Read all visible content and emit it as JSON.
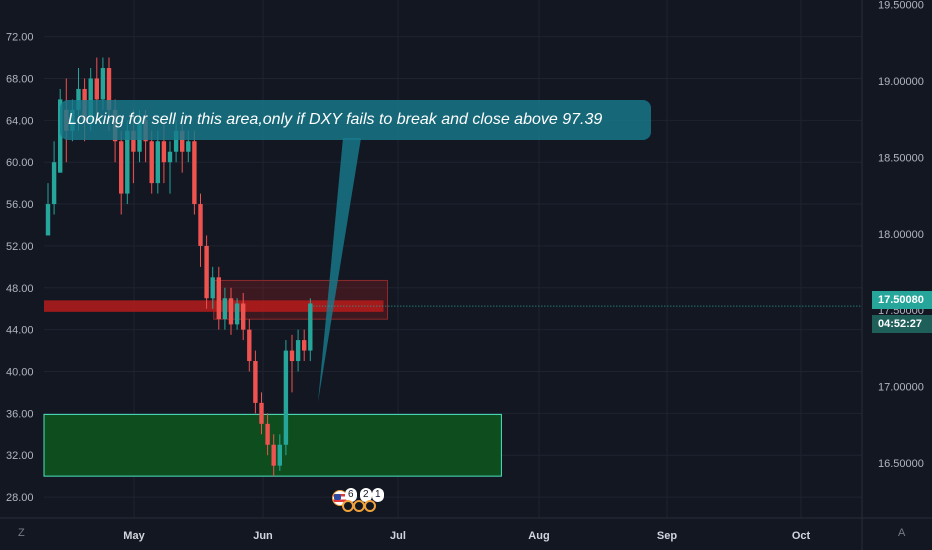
{
  "colors": {
    "background": "#131722",
    "up": "#26a69a",
    "down": "#ef5350",
    "grid": "#1f2330",
    "resistance": "#b71c1c",
    "support": "#0e4d1e",
    "support_border": "#4fe3c1",
    "callout": "#177a8c"
  },
  "chart_data": {
    "type": "candlestick",
    "left_axis": {
      "ticks": [
        "72.00",
        "68.00",
        "64.00",
        "60.00",
        "56.00",
        "52.00",
        "48.00",
        "44.00",
        "40.00",
        "36.00",
        "32.00",
        "28.00"
      ],
      "range": [
        26.0,
        75.5
      ]
    },
    "right_axis": {
      "ticks": [
        "19.50000",
        "19.00000",
        "18.50000",
        "18.00000",
        "17.50000",
        "17.00000",
        "16.50000"
      ],
      "range": [
        16.14,
        19.53
      ]
    },
    "x_labels": [
      "May",
      "Jun",
      "Jul",
      "Aug",
      "Sep",
      "Oct"
    ],
    "candles": [
      [
        53.0,
        56.0,
        53.0,
        58.0
      ],
      [
        56.0,
        60.0,
        55.0,
        62.0
      ],
      [
        59.0,
        66.0,
        59.0,
        67.0
      ],
      [
        65.0,
        63.0,
        60.0,
        68.0
      ],
      [
        63.0,
        65.0,
        62.0,
        66.0
      ],
      [
        65.0,
        67.0,
        63.0,
        69.0
      ],
      [
        67.0,
        64.0,
        62.0,
        68.0
      ],
      [
        64.0,
        68.0,
        63.0,
        69.0
      ],
      [
        68.0,
        66.0,
        64.0,
        70.0
      ],
      [
        66.0,
        69.0,
        65.0,
        70.0
      ],
      [
        69.0,
        65.0,
        63.0,
        70.0
      ],
      [
        65.0,
        62.0,
        60.0,
        66.0
      ],
      [
        62.0,
        57.0,
        55.0,
        63.0
      ],
      [
        57.0,
        63.0,
        56.0,
        64.0
      ],
      [
        63.0,
        61.0,
        58.0,
        65.0
      ],
      [
        61.0,
        64.0,
        60.0,
        65.0
      ],
      [
        64.0,
        62.0,
        60.0,
        65.0
      ],
      [
        62.0,
        58.0,
        57.0,
        63.0
      ],
      [
        58.0,
        62.0,
        57.0,
        63.0
      ],
      [
        62.0,
        60.0,
        58.0,
        64.0
      ],
      [
        60.0,
        61.0,
        57.0,
        62.0
      ],
      [
        61.0,
        63.0,
        60.0,
        64.0
      ],
      [
        63.0,
        61.0,
        59.0,
        64.0
      ],
      [
        61.0,
        62.0,
        60.0,
        63.0
      ],
      [
        62.0,
        56.0,
        55.0,
        63.0
      ],
      [
        56.0,
        52.0,
        50.0,
        57.0
      ],
      [
        52.0,
        47.0,
        46.0,
        53.0
      ],
      [
        47.0,
        49.0,
        46.0,
        50.0
      ],
      [
        49.0,
        45.0,
        44.0,
        50.0
      ],
      [
        45.0,
        47.0,
        44.0,
        48.0
      ],
      [
        47.0,
        44.5,
        43.5,
        48.0
      ],
      [
        44.5,
        46.5,
        44.0,
        47.0
      ],
      [
        46.5,
        44.0,
        43.0,
        47.5
      ],
      [
        44.0,
        41.0,
        40.0,
        45.0
      ],
      [
        41.0,
        37.0,
        36.0,
        42.0
      ],
      [
        37.0,
        35.0,
        34.0,
        38.0
      ],
      [
        35.0,
        33.0,
        32.0,
        36.0
      ],
      [
        33.0,
        31.0,
        30.0,
        34.0
      ],
      [
        31.0,
        33.0,
        30.5,
        34.0
      ],
      [
        33.0,
        42.0,
        32.0,
        43.0
      ],
      [
        42.0,
        41.0,
        38.0,
        43.5
      ],
      [
        41.0,
        43.0,
        40.0,
        44.0
      ],
      [
        43.0,
        42.0,
        41.0,
        44.0
      ],
      [
        42.0,
        46.5,
        41.0,
        47.0
      ]
    ],
    "resistance_zone": {
      "x_from": 0,
      "x_to": 55,
      "y_top": 46.8,
      "y_bottom": 45.7
    },
    "highlight_box": {
      "x_from": 27,
      "x_to": 55,
      "y_top": 48.7,
      "y_bottom": 45.0
    },
    "support_zone": {
      "x_from": 0,
      "x_to": 74,
      "y_top": 35.9,
      "y_bottom": 30.0
    },
    "current_price": 46.25,
    "annotation": "Looking for sell in this area,only if DXY fails to break and close above 97.39"
  },
  "price_tag": {
    "value": "17.50080",
    "countdown": "04:52:27"
  },
  "events": {
    "first": "6",
    "second": "2",
    "third": "1"
  },
  "corner": {
    "left": "Z",
    "right": "A"
  }
}
